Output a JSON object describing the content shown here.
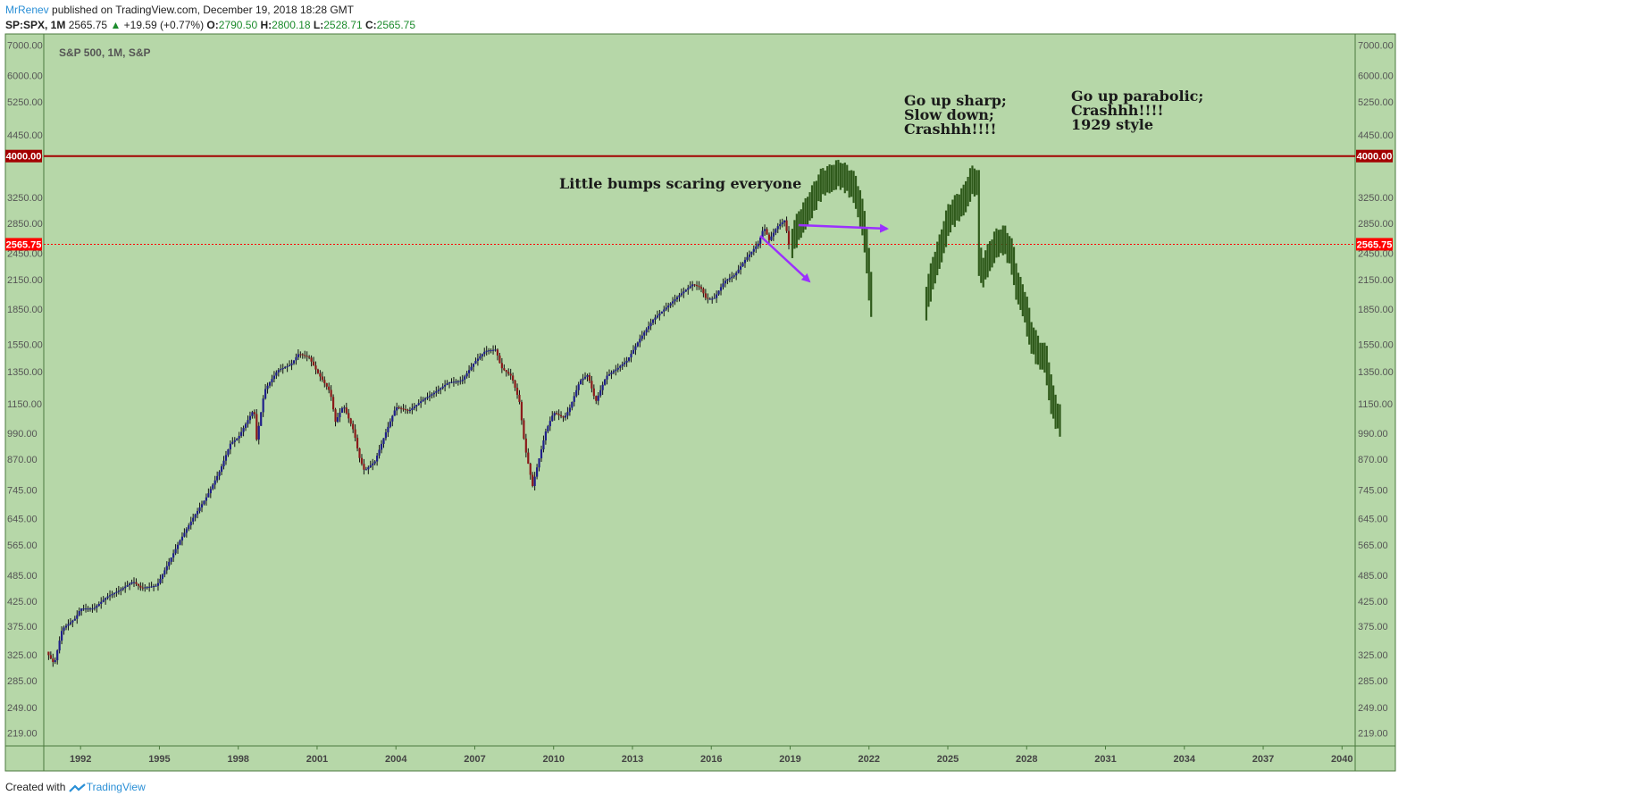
{
  "header": {
    "author": "MrRenev",
    "published": "published on TradingView.com, December 19, 2018 18:28 GMT",
    "symbol": "SP:SPX, 1M",
    "last": "2565.75",
    "change": "+19.59 (+0.77%)",
    "o_label": "O:",
    "o_value": "2790.50",
    "h_label": "H:",
    "h_value": "2800.18",
    "l_label": "L:",
    "l_value": "2528.71",
    "c_label": "C:",
    "c_value": "2565.75"
  },
  "footer": {
    "created_with": "Created with",
    "brand": "TradingView"
  },
  "colors": {
    "chart_bg": "#b6d7a8",
    "frame": "#4b7a3e",
    "resistance_line": "#a30000",
    "price_line": "#ff0000",
    "candle_up": "#1f1f8a",
    "candle_down": "#8b1a1a",
    "projection": "#2f5a1b",
    "arrow": "#9b30ff"
  },
  "chart_data": {
    "type": "candlestick",
    "title": "S&P 500, 1M, S&P",
    "y_scale": "log",
    "ylim": [
      210,
      7200
    ],
    "xlim": [
      1990.6,
      2040.5
    ],
    "y_ticks": [
      "7000.00",
      "6000.00",
      "5250.00",
      "4450.00",
      "4000.00",
      "3250.00",
      "2850.00",
      "2450.00",
      "2150.00",
      "1850.00",
      "1550.00",
      "1350.00",
      "1150.00",
      "990.00",
      "870.00",
      "745.00",
      "645.00",
      "565.00",
      "485.00",
      "425.00",
      "375.00",
      "325.00",
      "285.00",
      "249.00",
      "219.00"
    ],
    "x_ticks": [
      "1992",
      "1995",
      "1998",
      "2001",
      "2004",
      "2007",
      "2010",
      "2013",
      "2016",
      "2019",
      "2022",
      "2025",
      "2028",
      "2031",
      "2034",
      "2037",
      "2040"
    ],
    "horizontal_lines": [
      {
        "label": "4000.00",
        "value": 4000,
        "style": "solid"
      },
      {
        "label": "2565.75",
        "value": 2565.75,
        "style": "dotted"
      }
    ],
    "historical_path": [
      [
        1990.7,
        330
      ],
      [
        1991.0,
        310
      ],
      [
        1991.3,
        370
      ],
      [
        1991.8,
        390
      ],
      [
        1992.0,
        410
      ],
      [
        1992.5,
        410
      ],
      [
        1993.0,
        435
      ],
      [
        1993.5,
        450
      ],
      [
        1994.0,
        470
      ],
      [
        1994.3,
        455
      ],
      [
        1994.9,
        460
      ],
      [
        1995.3,
        510
      ],
      [
        1995.8,
        580
      ],
      [
        1996.3,
        650
      ],
      [
        1996.8,
        720
      ],
      [
        1997.3,
        820
      ],
      [
        1997.7,
        940
      ],
      [
        1998.0,
        970
      ],
      [
        1998.6,
        1120
      ],
      [
        1998.7,
        960
      ],
      [
        1999.0,
        1230
      ],
      [
        1999.5,
        1360
      ],
      [
        2000.0,
        1400
      ],
      [
        2000.3,
        1480
      ],
      [
        2000.7,
        1450
      ],
      [
        2001.0,
        1350
      ],
      [
        2001.5,
        1220
      ],
      [
        2001.7,
        1050
      ],
      [
        2002.0,
        1140
      ],
      [
        2002.4,
        1000
      ],
      [
        2002.6,
        880
      ],
      [
        2002.8,
        820
      ],
      [
        2003.2,
        860
      ],
      [
        2003.6,
        990
      ],
      [
        2004.0,
        1130
      ],
      [
        2004.5,
        1110
      ],
      [
        2005.0,
        1170
      ],
      [
        2005.5,
        1220
      ],
      [
        2006.0,
        1280
      ],
      [
        2006.5,
        1290
      ],
      [
        2007.0,
        1420
      ],
      [
        2007.4,
        1500
      ],
      [
        2007.8,
        1510
      ],
      [
        2008.0,
        1380
      ],
      [
        2008.4,
        1320
      ],
      [
        2008.7,
        1160
      ],
      [
        2008.9,
        930
      ],
      [
        2009.2,
        760
      ],
      [
        2009.4,
        850
      ],
      [
        2009.7,
        1000
      ],
      [
        2010.0,
        1100
      ],
      [
        2010.4,
        1070
      ],
      [
        2010.6,
        1120
      ],
      [
        2011.0,
        1290
      ],
      [
        2011.3,
        1330
      ],
      [
        2011.6,
        1160
      ],
      [
        2012.0,
        1320
      ],
      [
        2012.4,
        1370
      ],
      [
        2012.8,
        1430
      ],
      [
        2013.3,
        1600
      ],
      [
        2013.8,
        1760
      ],
      [
        2014.3,
        1870
      ],
      [
        2014.8,
        1990
      ],
      [
        2015.3,
        2100
      ],
      [
        2015.6,
        2060
      ],
      [
        2015.8,
        1950
      ],
      [
        2016.1,
        1950
      ],
      [
        2016.5,
        2130
      ],
      [
        2016.9,
        2200
      ],
      [
        2017.3,
        2380
      ],
      [
        2017.8,
        2580
      ],
      [
        2018.0,
        2800
      ],
      [
        2018.2,
        2620
      ],
      [
        2018.5,
        2800
      ],
      [
        2018.8,
        2900
      ],
      [
        2018.95,
        2560
      ]
    ],
    "projection_1": [
      [
        2019.0,
        2600
      ],
      [
        2019.3,
        2850
      ],
      [
        2019.6,
        3050
      ],
      [
        2019.9,
        3300
      ],
      [
        2020.2,
        3550
      ],
      [
        2020.5,
        3600
      ],
      [
        2020.8,
        3700
      ],
      [
        2021.1,
        3600
      ],
      [
        2021.4,
        3450
      ],
      [
        2021.6,
        3150
      ],
      [
        2021.8,
        2800
      ],
      [
        2022.0,
        2100
      ],
      [
        2022.1,
        1850
      ],
      [
        2022.15,
        1700
      ]
    ],
    "projection_2": [
      [
        2024.1,
        1900
      ],
      [
        2024.4,
        2250
      ],
      [
        2024.7,
        2550
      ],
      [
        2025.0,
        2950
      ],
      [
        2025.3,
        3100
      ],
      [
        2025.6,
        3250
      ],
      [
        2025.9,
        3600
      ],
      [
        2026.1,
        3500
      ],
      [
        2026.2,
        2200
      ],
      [
        2026.5,
        2400
      ],
      [
        2026.8,
        2600
      ],
      [
        2027.1,
        2650
      ],
      [
        2027.4,
        2450
      ],
      [
        2027.6,
        2100
      ],
      [
        2027.9,
        1900
      ],
      [
        2028.1,
        1650
      ],
      [
        2028.4,
        1500
      ],
      [
        2028.7,
        1450
      ],
      [
        2028.9,
        1200
      ],
      [
        2029.1,
        1100
      ],
      [
        2029.3,
        1050
      ]
    ],
    "annotations": [
      {
        "lines": [
          "Little bumps scaring everyone"
        ]
      },
      {
        "lines": [
          "Go up sharp;",
          "Slow down;",
          "Crashhh!!!!"
        ]
      },
      {
        "lines": [
          "Go up parabolic;",
          "Crashhh!!!!",
          "1929 style"
        ]
      }
    ]
  }
}
